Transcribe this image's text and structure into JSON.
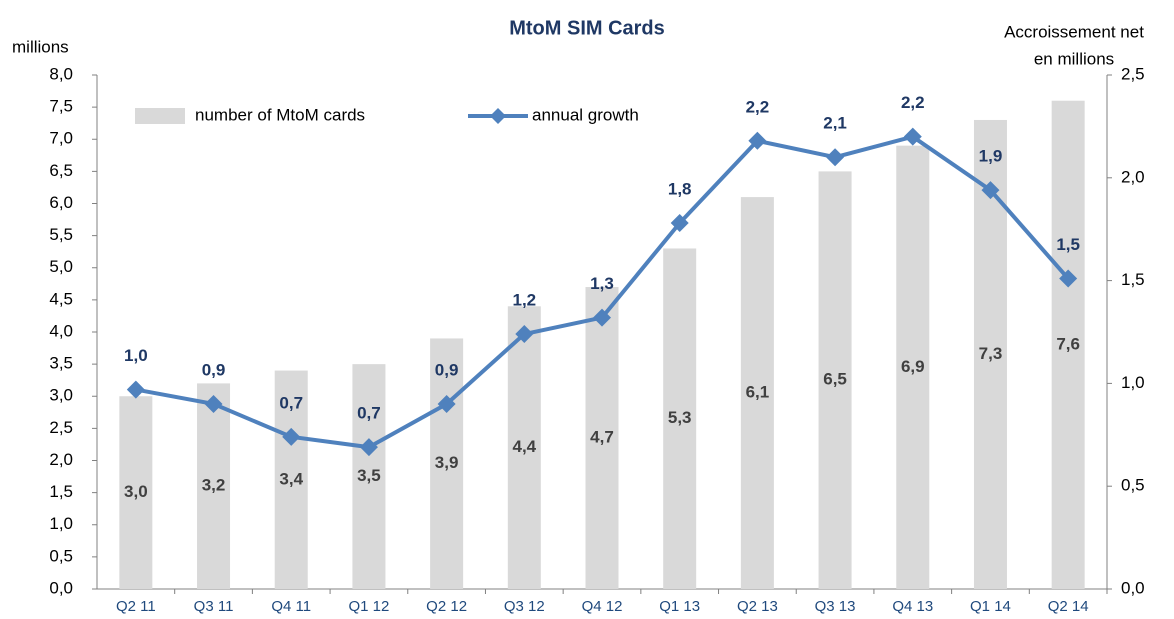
{
  "chart_data": {
    "type": "bar",
    "title": "MtoM SIM Cards",
    "y_label": "millions",
    "y2_label": [
      "Accroissement net",
      "en millions"
    ],
    "categories": [
      "Q2 11",
      "Q3 11",
      "Q4 11",
      "Q1 12",
      "Q2 12",
      "Q3 12",
      "Q4 12",
      "Q1 13",
      "Q2 13",
      "Q3 13",
      "Q4 13",
      "Q1 14",
      "Q2 14"
    ],
    "series": [
      {
        "name": "number of MtoM cards",
        "type": "bar",
        "color": "#d9d9d9",
        "values": [
          3.0,
          3.2,
          3.4,
          3.5,
          3.9,
          4.4,
          4.7,
          5.3,
          6.1,
          6.5,
          6.9,
          7.3,
          7.6
        ],
        "value_labels": [
          "3,0",
          "3,2",
          "3,4",
          "3,5",
          "3,9",
          "4,4",
          "4,7",
          "5,3",
          "6,1",
          "6,5",
          "6,9",
          "7,3",
          "7,6"
        ]
      },
      {
        "name": "annual growth",
        "type": "line",
        "axis": "y2",
        "color": "#4f81bd",
        "values": [
          0.97,
          0.9,
          0.74,
          0.69,
          0.9,
          1.24,
          1.32,
          1.78,
          2.18,
          2.1,
          2.2,
          1.94,
          1.51
        ],
        "value_labels": [
          "1,0",
          "0,9",
          "0,7",
          "0,7",
          "0,9",
          "1,2",
          "1,3",
          "1,8",
          "2,2",
          "2,1",
          "2,2",
          "1,9",
          "1,5"
        ]
      }
    ],
    "ylim": [
      0,
      8
    ],
    "yticks": [
      {
        "value": 0,
        "label": "0,0"
      },
      {
        "value": 0.5,
        "label": "0,5"
      },
      {
        "value": 1,
        "label": "1,0"
      },
      {
        "value": 1.5,
        "label": "1,5"
      },
      {
        "value": 2,
        "label": "2,0"
      },
      {
        "value": 2.5,
        "label": "2,5"
      },
      {
        "value": 3,
        "label": "3,0"
      },
      {
        "value": 3.5,
        "label": "3,5"
      },
      {
        "value": 4,
        "label": "4,0"
      },
      {
        "value": 4.5,
        "label": "4,5"
      },
      {
        "value": 5,
        "label": "5,0"
      },
      {
        "value": 5.5,
        "label": "5,5"
      },
      {
        "value": 6,
        "label": "6,0"
      },
      {
        "value": 6.5,
        "label": "6,5"
      },
      {
        "value": 7,
        "label": "7,0"
      },
      {
        "value": 7.5,
        "label": "7,5"
      },
      {
        "value": 8,
        "label": "8,0"
      }
    ],
    "y2lim": [
      0,
      2.5
    ],
    "y2ticks": [
      {
        "value": 0,
        "label": "0,0"
      },
      {
        "value": 0.5,
        "label": "0,5"
      },
      {
        "value": 1,
        "label": "1,0"
      },
      {
        "value": 1.5,
        "label": "1,5"
      },
      {
        "value": 2,
        "label": "2,0"
      },
      {
        "value": 2.5,
        "label": "2,5"
      }
    ]
  }
}
